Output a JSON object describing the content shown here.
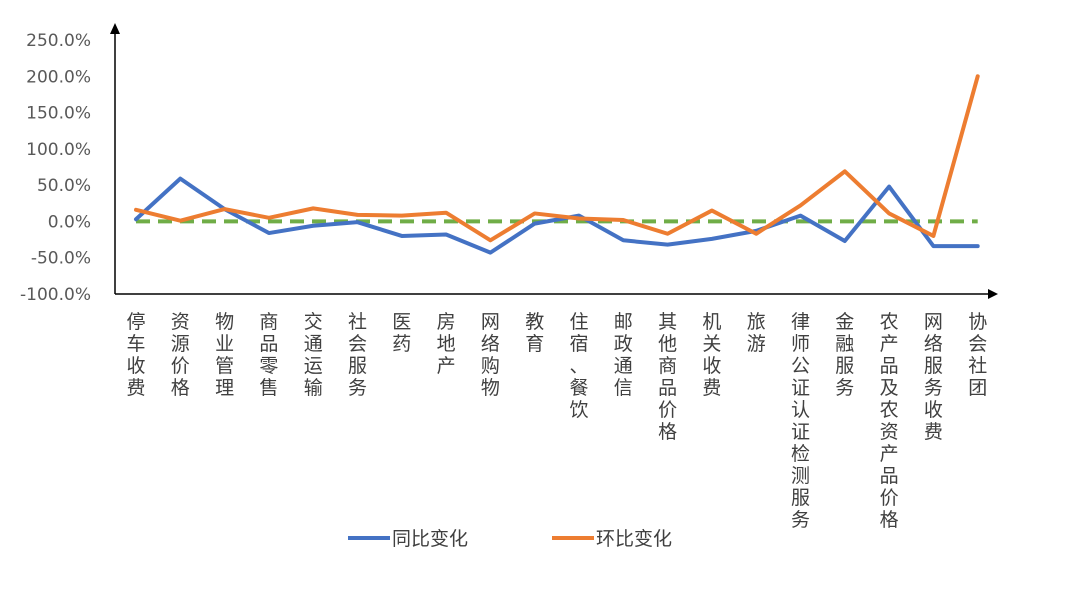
{
  "chart_data": {
    "type": "line",
    "categories": [
      "停车收费",
      "资源价格",
      "物业管理",
      "商品零售",
      "交通运输",
      "社会服务",
      "医药",
      "房地产",
      "网络购物",
      "教育",
      "住宿、餐饮",
      "邮政通信",
      "其他商品价格",
      "机关收费",
      "旅游",
      "律师公证认证检测服务",
      "金融服务",
      "农产品及农资产品价格",
      "网络服务收费",
      "协会社团"
    ],
    "series": [
      {
        "name": "同比变化",
        "color": "#4472C4",
        "values": [
          3,
          59,
          17,
          -16,
          -6,
          -1,
          -20,
          -18,
          -43,
          -3,
          8,
          -26,
          -32,
          -24,
          -13,
          8,
          -27,
          48,
          -34,
          -34
        ]
      },
      {
        "name": "环比变化",
        "color": "#ED7D31",
        "values": [
          16,
          1,
          17,
          5,
          18,
          9,
          8,
          12,
          -26,
          11,
          4,
          2,
          -17,
          15,
          -17,
          22,
          69,
          11,
          -20,
          200
        ]
      }
    ],
    "zero_line": {
      "color": "#70AD47"
    },
    "ylim": [
      -100,
      250
    ],
    "yticks": [
      "-100.0%",
      "-50.0%",
      "0.0%",
      "50.0%",
      "100.0%",
      "150.0%",
      "200.0%",
      "250.0%"
    ],
    "ytick_values": [
      -100,
      -50,
      0,
      50,
      100,
      150,
      200,
      250
    ],
    "legend": {
      "position": "bottom",
      "items": [
        "同比变化",
        "环比变化"
      ]
    },
    "grid": false
  }
}
